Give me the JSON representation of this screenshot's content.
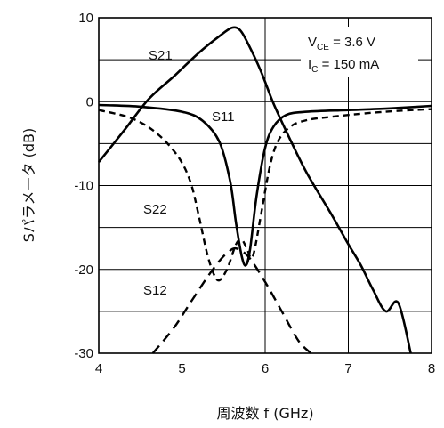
{
  "chart_data": {
    "type": "line",
    "xlabel": "周波数 f (GHz)",
    "ylabel": "Sパラメータ (dB)",
    "xlim": [
      4,
      8
    ],
    "ylim": [
      -30,
      10
    ],
    "xticks": [
      4,
      5,
      6,
      7,
      8
    ],
    "yticks": [
      10,
      0,
      -10,
      -20,
      -30
    ],
    "grid": true,
    "conditions": {
      "vce_base": "V",
      "vce_sub": "CE",
      "vce_value": " = 3.6 V",
      "ic_base": "I",
      "ic_sub": "C",
      "ic_value": " = 150 mA"
    },
    "series": [
      {
        "name": "S21",
        "style": "solid",
        "x": [
          4.0,
          4.3,
          4.6,
          4.9,
          5.2,
          5.45,
          5.6,
          5.7,
          5.8,
          5.95,
          6.1,
          6.3,
          6.5,
          6.8,
          7.0,
          7.15,
          7.3,
          7.45,
          7.6,
          7.75
        ],
        "y": [
          -7.2,
          -3.5,
          0.3,
          3.0,
          5.8,
          7.8,
          8.8,
          8.5,
          6.8,
          3.6,
          -0.2,
          -4.5,
          -8.5,
          -13.5,
          -17.0,
          -19.5,
          -22.5,
          -25.0,
          -24.0,
          -30.0
        ]
      },
      {
        "name": "S11",
        "style": "solid",
        "x": [
          4.0,
          4.5,
          5.0,
          5.25,
          5.45,
          5.58,
          5.65,
          5.72,
          5.77,
          5.82,
          5.9,
          6.0,
          6.1,
          6.25,
          6.5,
          7.0,
          7.5,
          8.0
        ],
        "y": [
          -0.4,
          -0.6,
          -1.2,
          -2.3,
          -4.8,
          -9.5,
          -14.5,
          -18.5,
          -19.5,
          -17.5,
          -11.0,
          -5.5,
          -3.0,
          -1.6,
          -1.2,
          -1.0,
          -0.8,
          -0.5
        ]
      },
      {
        "name": "S22",
        "style": "dashed",
        "x": [
          4.0,
          4.4,
          4.7,
          4.95,
          5.1,
          5.2,
          5.3,
          5.38,
          5.45,
          5.55,
          5.65,
          5.72,
          5.78,
          5.85,
          5.95,
          6.05,
          6.15,
          6.3,
          6.5,
          6.8,
          7.2,
          7.6,
          8.0
        ],
        "y": [
          -1.0,
          -2.0,
          -3.8,
          -6.5,
          -9.5,
          -13.5,
          -18.0,
          -20.5,
          -21.3,
          -19.8,
          -17.0,
          -16.5,
          -17.5,
          -18.5,
          -13.5,
          -8.0,
          -4.8,
          -3.0,
          -2.2,
          -1.8,
          -1.4,
          -1.1,
          -0.9
        ]
      },
      {
        "name": "S12",
        "style": "dashed",
        "x": [
          4.65,
          4.9,
          5.1,
          5.3,
          5.45,
          5.55,
          5.65,
          5.8,
          6.0,
          6.2,
          6.4,
          6.55
        ],
        "y": [
          -30.0,
          -27.0,
          -24.0,
          -21.0,
          -19.0,
          -18.0,
          -17.5,
          -18.5,
          -21.5,
          -25.0,
          -28.5,
          -30.0
        ]
      }
    ]
  }
}
